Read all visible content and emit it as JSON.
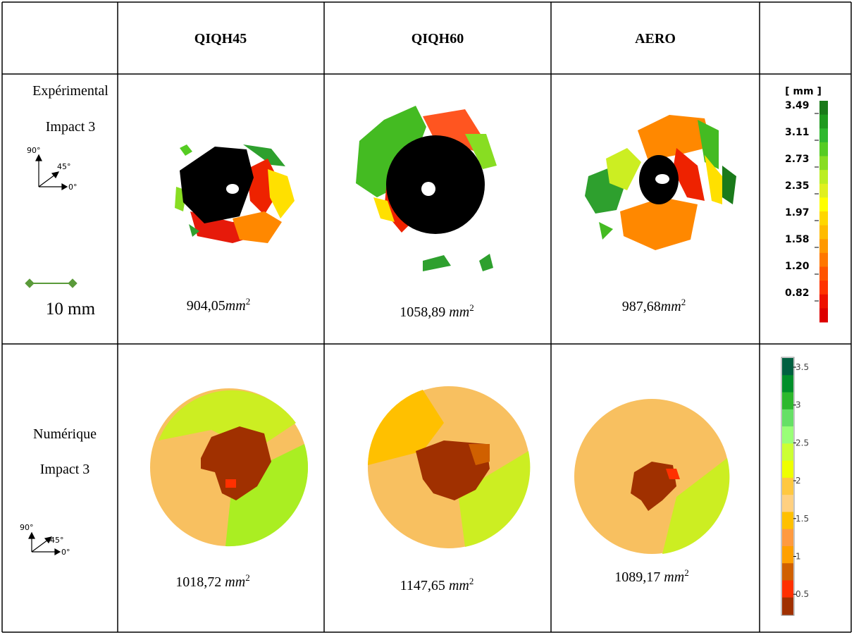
{
  "header": {
    "columns": [
      "QIQH45",
      "QIQH60",
      "AERO"
    ]
  },
  "rows": [
    {
      "label": [
        "Expérimental",
        "Impact 3"
      ],
      "orientation": [
        "90°",
        "45°",
        "0°"
      ],
      "scale": "10 mm",
      "areas": [
        {
          "value": "904,05",
          "unit": "mm",
          "exp": "2"
        },
        {
          "value": "1058,89",
          "unit": "mm",
          "exp": "2"
        },
        {
          "value": "987,68",
          "unit": "mm",
          "exp": "2"
        }
      ],
      "legend": {
        "unit": "[ mm ]",
        "ticks": [
          "3.49",
          "3.11",
          "2.73",
          "2.35",
          "1.97",
          "1.58",
          "1.20",
          "0.82"
        ],
        "colors": [
          "#1a7a1a",
          "#1f9a1f",
          "#2eb82e",
          "#55cc22",
          "#88dd22",
          "#bbee22",
          "#e0f020",
          "#ffff00",
          "#ffd700",
          "#ffbb00",
          "#ff9900",
          "#ff7700",
          "#ff5500",
          "#ff3300",
          "#ee1100",
          "#dd0000"
        ]
      }
    },
    {
      "label": [
        "Numérique",
        "Impact 3"
      ],
      "orientation": [
        "90°",
        "45°",
        "0°"
      ],
      "areas": [
        {
          "value": "1018,72",
          "unit": "mm",
          "exp": "2"
        },
        {
          "value": "1147,65",
          "unit": "mm",
          "exp": "2"
        },
        {
          "value": "1089,17",
          "unit": "mm",
          "exp": "2"
        }
      ],
      "legend": {
        "ticks": [
          "3.5",
          "3",
          "2.5",
          "2",
          "1.5",
          "1",
          "0.5"
        ],
        "colors": [
          "#006040",
          "#008f2a",
          "#2db82d",
          "#66e066",
          "#99ff77",
          "#ccff33",
          "#eeff00",
          "#ffc840",
          "#ffd080",
          "#ffc000",
          "#ff9a40",
          "#ffa000",
          "#d06000",
          "#ff3000",
          "#a03000"
        ]
      }
    }
  ]
}
